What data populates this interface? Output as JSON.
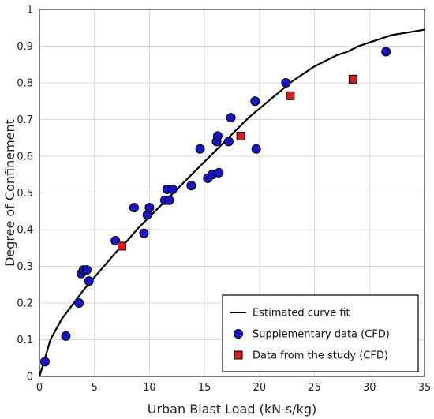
{
  "chart_data": {
    "type": "scatter",
    "title": "",
    "xlabel": "Urban Blast Load (kN-s/kg)",
    "ylabel": "Degree of Confinement",
    "xlim": [
      0,
      35
    ],
    "ylim": [
      0,
      1
    ],
    "xticks": [
      0,
      5,
      10,
      15,
      20,
      25,
      30,
      35
    ],
    "yticks": [
      0,
      0.1,
      0.2,
      0.3,
      0.4,
      0.5,
      0.6,
      0.7,
      0.8,
      0.9,
      1
    ],
    "grid": true,
    "legend_position": "bottom-right",
    "series": [
      {
        "name": "Estimated curve fit",
        "kind": "line",
        "color": "#000000",
        "points": [
          [
            0,
            0
          ],
          [
            0.5,
            0.05
          ],
          [
            1,
            0.1
          ],
          [
            2,
            0.155
          ],
          [
            3,
            0.195
          ],
          [
            4,
            0.235
          ],
          [
            5,
            0.27
          ],
          [
            6,
            0.305
          ],
          [
            7,
            0.34
          ],
          [
            8,
            0.37
          ],
          [
            9,
            0.405
          ],
          [
            10,
            0.435
          ],
          [
            11,
            0.465
          ],
          [
            12,
            0.495
          ],
          [
            13,
            0.525
          ],
          [
            14,
            0.555
          ],
          [
            15,
            0.585
          ],
          [
            16,
            0.615
          ],
          [
            17,
            0.645
          ],
          [
            18,
            0.675
          ],
          [
            19,
            0.705
          ],
          [
            20,
            0.73
          ],
          [
            21,
            0.755
          ],
          [
            22,
            0.78
          ],
          [
            23,
            0.805
          ],
          [
            24,
            0.825
          ],
          [
            25,
            0.845
          ],
          [
            26,
            0.86
          ],
          [
            27,
            0.875
          ],
          [
            28,
            0.885
          ],
          [
            29,
            0.9
          ],
          [
            30,
            0.91
          ],
          [
            31,
            0.92
          ],
          [
            32,
            0.93
          ],
          [
            33,
            0.935
          ],
          [
            34,
            0.94
          ],
          [
            35,
            0.945
          ]
        ]
      },
      {
        "name": "Supplementary data (CFD)",
        "kind": "circle",
        "color": "#1a14c8",
        "points": [
          [
            0.5,
            0.04
          ],
          [
            2.4,
            0.11
          ],
          [
            3.6,
            0.2
          ],
          [
            3.8,
            0.28
          ],
          [
            4.0,
            0.29
          ],
          [
            4.3,
            0.29
          ],
          [
            4.5,
            0.26
          ],
          [
            6.9,
            0.37
          ],
          [
            8.6,
            0.46
          ],
          [
            9.5,
            0.39
          ],
          [
            9.8,
            0.44
          ],
          [
            10.0,
            0.46
          ],
          [
            11.4,
            0.48
          ],
          [
            11.6,
            0.51
          ],
          [
            11.8,
            0.48
          ],
          [
            12.1,
            0.51
          ],
          [
            13.8,
            0.52
          ],
          [
            14.6,
            0.62
          ],
          [
            15.3,
            0.54
          ],
          [
            15.7,
            0.55
          ],
          [
            16.1,
            0.64
          ],
          [
            16.2,
            0.655
          ],
          [
            16.3,
            0.555
          ],
          [
            17.2,
            0.64
          ],
          [
            17.4,
            0.705
          ],
          [
            19.6,
            0.75
          ],
          [
            19.7,
            0.62
          ],
          [
            22.4,
            0.8
          ],
          [
            31.5,
            0.885
          ]
        ]
      },
      {
        "name": "Data from the study (CFD)",
        "kind": "square",
        "color": "#d81e1e",
        "points": [
          [
            7.5,
            0.355
          ],
          [
            18.3,
            0.655
          ],
          [
            22.8,
            0.765
          ],
          [
            28.5,
            0.81
          ]
        ]
      }
    ]
  }
}
